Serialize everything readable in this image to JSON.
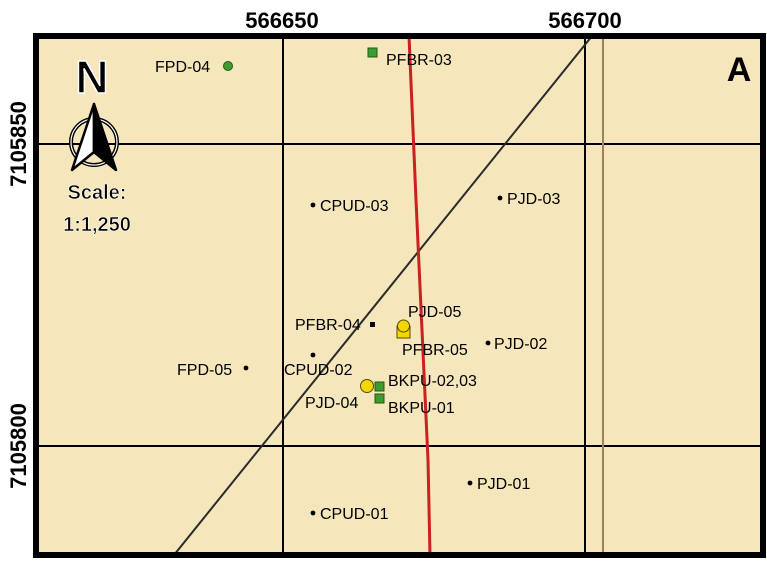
{
  "map": {
    "panel_label": "A",
    "background_color": "#f5e6bc",
    "grid": {
      "eastings": [
        "566650",
        "566700"
      ],
      "northings": [
        "7105850",
        "7105800"
      ]
    },
    "north_arrow": {
      "letter": "N",
      "scale_title": "Scale:",
      "scale_value": "1:1,250"
    },
    "features": [
      {
        "id": "FPD-04",
        "label": "FPD-04",
        "symbol": "green-circle"
      },
      {
        "id": "PFBR-03",
        "label": "PFBR-03",
        "symbol": "green-square"
      },
      {
        "id": "CPUD-03",
        "label": "CPUD-03",
        "symbol": "dot"
      },
      {
        "id": "PJD-03",
        "label": "PJD-03",
        "symbol": "dot"
      },
      {
        "id": "PJD-05",
        "label": "PJD-05",
        "symbol": "yellow-circle"
      },
      {
        "id": "PFBR-04",
        "label": "PFBR-04",
        "symbol": "black-square"
      },
      {
        "id": "PFBR-05",
        "label": "PFBR-05",
        "symbol": "yellow-square"
      },
      {
        "id": "PJD-02",
        "label": "PJD-02",
        "symbol": "dot"
      },
      {
        "id": "FPD-05",
        "label": "FPD-05",
        "symbol": "dot"
      },
      {
        "id": "CPUD-02",
        "label": "CPUD-02",
        "symbol": "dot"
      },
      {
        "id": "BKPU-02-03",
        "label": "BKPU-02,03",
        "symbol": "green-square"
      },
      {
        "id": "PJD-04",
        "label": "PJD-04",
        "symbol": "yellow-circle"
      },
      {
        "id": "BKPU-01",
        "label": "BKPU-01",
        "symbol": "green-square"
      },
      {
        "id": "PJD-01",
        "label": "PJD-01",
        "symbol": "dot"
      },
      {
        "id": "CPUD-01",
        "label": "CPUD-01",
        "symbol": "dot"
      }
    ],
    "line_colors": {
      "grid": "#000000",
      "road": "#cc1f1f",
      "boundary": "#a08060",
      "diagonal": "#2a2a2a"
    }
  }
}
